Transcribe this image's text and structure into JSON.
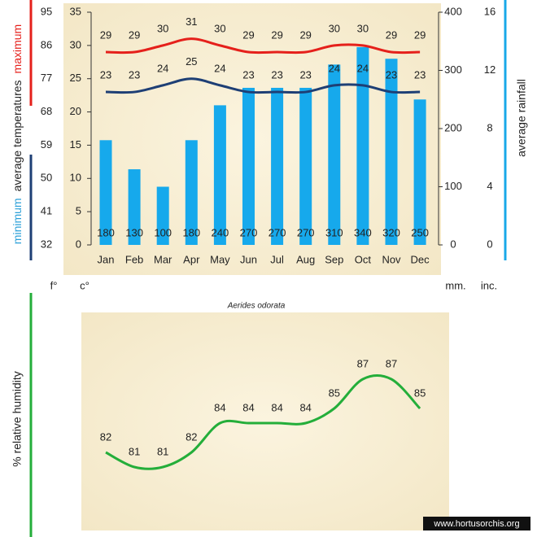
{
  "chart_data": [
    {
      "type": "combo",
      "categories": [
        "Jan",
        "Feb",
        "Mar",
        "Apr",
        "May",
        "Jun",
        "Jul",
        "Aug",
        "Sep",
        "Oct",
        "Nov",
        "Dec"
      ],
      "ylabel": "average temperatures",
      "ylim": [
        0,
        35
      ],
      "yticks": [
        0,
        5,
        10,
        15,
        20,
        25,
        30,
        35
      ],
      "yunit": "c°",
      "y3lim": [
        32,
        95
      ],
      "y3ticks": [
        32,
        41,
        50,
        59,
        68,
        77,
        86,
        95
      ],
      "y3unit": "f°",
      "y2lim": [
        0,
        400
      ],
      "y2ticks": [
        0,
        100,
        200,
        300,
        400
      ],
      "y2unit": "mm.",
      "y4lim": [
        0,
        16
      ],
      "y4ticks": [
        0,
        4,
        8,
        12,
        16
      ],
      "y4unit": "inc.",
      "series": [
        {
          "name": "average rainfall",
          "type": "bar",
          "axis": "y2",
          "color": "#16a9ec",
          "values": [
            180,
            130,
            100,
            180,
            240,
            270,
            270,
            270,
            310,
            340,
            320,
            250
          ]
        },
        {
          "name": "maximum",
          "type": "line",
          "color": "#e5201b",
          "values": [
            29,
            29,
            30,
            31,
            30,
            29,
            29,
            29,
            30,
            30,
            29,
            29
          ]
        },
        {
          "name": "minimum",
          "type": "line",
          "color": "#1e3f75",
          "values": [
            23,
            23,
            24,
            25,
            24,
            23,
            23,
            23,
            24,
            24,
            23,
            23
          ]
        }
      ]
    },
    {
      "type": "line",
      "title": "Aerides odorata",
      "ylabel": "% relative humidity",
      "color": "#24ae3a",
      "values": [
        82,
        81,
        81,
        82,
        84,
        84,
        84,
        84,
        85,
        87,
        87,
        85
      ]
    }
  ],
  "watermark": "www.hortusorchis.org"
}
